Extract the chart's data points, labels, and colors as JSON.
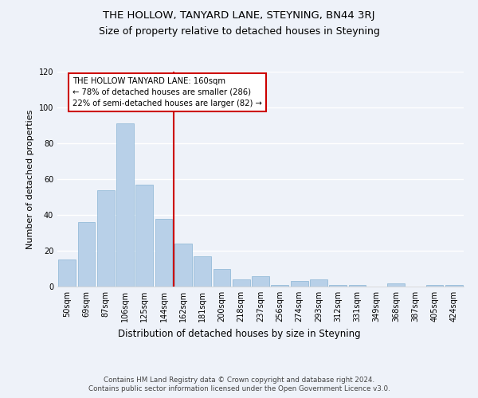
{
  "title": "THE HOLLOW, TANYARD LANE, STEYNING, BN44 3RJ",
  "subtitle": "Size of property relative to detached houses in Steyning",
  "xlabel": "Distribution of detached houses by size in Steyning",
  "ylabel": "Number of detached properties",
  "categories": [
    "50sqm",
    "69sqm",
    "87sqm",
    "106sqm",
    "125sqm",
    "144sqm",
    "162sqm",
    "181sqm",
    "200sqm",
    "218sqm",
    "237sqm",
    "256sqm",
    "274sqm",
    "293sqm",
    "312sqm",
    "331sqm",
    "349sqm",
    "368sqm",
    "387sqm",
    "405sqm",
    "424sqm"
  ],
  "values": [
    15,
    36,
    54,
    91,
    57,
    38,
    24,
    17,
    10,
    4,
    6,
    1,
    3,
    4,
    1,
    1,
    0,
    2,
    0,
    1,
    1
  ],
  "bar_color": "#b8d0e8",
  "bar_edge_color": "#89b4d4",
  "vline_index": 6,
  "vline_label": "THE HOLLOW TANYARD LANE: 160sqm",
  "annotation_line1": "← 78% of detached houses are smaller (286)",
  "annotation_line2": "22% of semi-detached houses are larger (82) →",
  "annotation_box_color": "#ffffff",
  "annotation_box_edge": "#cc0000",
  "vline_color": "#cc0000",
  "ylim": [
    0,
    120
  ],
  "yticks": [
    0,
    20,
    40,
    60,
    80,
    100,
    120
  ],
  "footer1": "Contains HM Land Registry data © Crown copyright and database right 2024.",
  "footer2": "Contains public sector information licensed under the Open Government Licence v3.0.",
  "bg_color": "#eef2f9",
  "title_fontsize": 9.5,
  "subtitle_fontsize": 9,
  "tick_fontsize": 7,
  "ylabel_fontsize": 8,
  "xlabel_fontsize": 8.5
}
